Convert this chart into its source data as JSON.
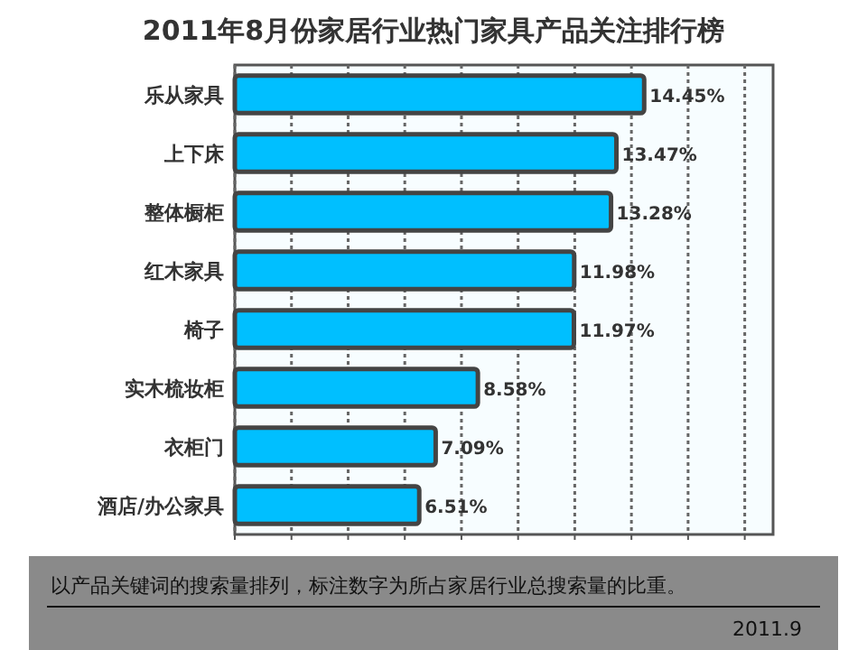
{
  "chart_data": {
    "type": "bar",
    "orientation": "horizontal",
    "title": "2011年8月份家居行业热门家具产品关注排行榜",
    "categories": [
      "乐从家具",
      "上下床",
      "整体橱柜",
      "红木家具",
      "椅子",
      "实木梳妆柜",
      "衣柜门",
      "酒店/办公家具"
    ],
    "values": [
      14.45,
      13.47,
      13.28,
      11.98,
      11.97,
      8.58,
      7.09,
      6.51
    ],
    "value_labels": [
      "14.45%",
      "13.47%",
      "13.28%",
      "11.98%",
      "11.97%",
      "8.58%",
      "7.09%",
      "6.51%"
    ],
    "color": "#00bfff",
    "xlim": [
      0,
      19
    ],
    "xticks": [
      {
        "value": 0,
        "label": null
      },
      {
        "value": 2,
        "label": null
      },
      {
        "value": 4,
        "label": null
      },
      {
        "value": 6,
        "label": null
      },
      {
        "value": 8,
        "label": null
      },
      {
        "value": 10,
        "label": null
      },
      {
        "value": 12,
        "label": null
      },
      {
        "value": 14,
        "label": null
      },
      {
        "value": 16,
        "label": null
      },
      {
        "value": 18,
        "label": null
      }
    ],
    "grid": "x",
    "tick_labels": "y",
    "annotations": [
      "以产品关键词的搜索量排列，标注数字为所占家居行业总搜索量的比重。",
      "2011.9"
    ]
  }
}
